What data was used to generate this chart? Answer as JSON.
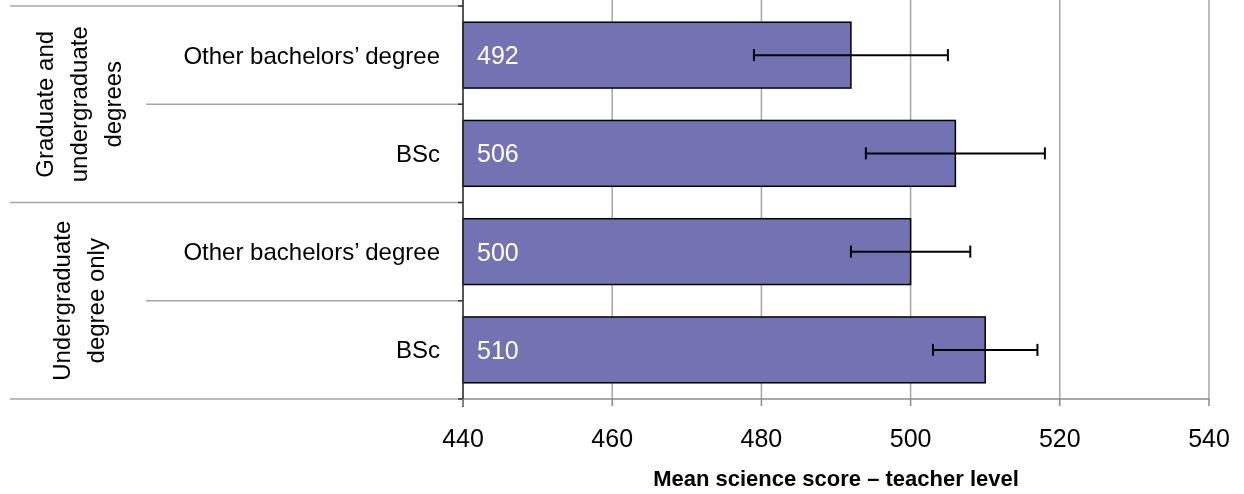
{
  "chart_data": {
    "type": "bar",
    "orientation": "horizontal",
    "xlabel": "Mean science score – teacher level",
    "categories": [
      "Other bachelors’ degree",
      "BSc",
      "Other bachelors’ degree",
      "BSc"
    ],
    "values": [
      492,
      506,
      500,
      510
    ],
    "errors": [
      13,
      12,
      8,
      7
    ],
    "color": "#7373b3",
    "xlim": [
      440,
      540
    ],
    "xticks": [
      440,
      460,
      480,
      500,
      520,
      540
    ],
    "grid": "x",
    "data_labels": true,
    "annotations": [
      "Graduate and undergraduate degrees",
      "Undergraduate degree only"
    ]
  }
}
